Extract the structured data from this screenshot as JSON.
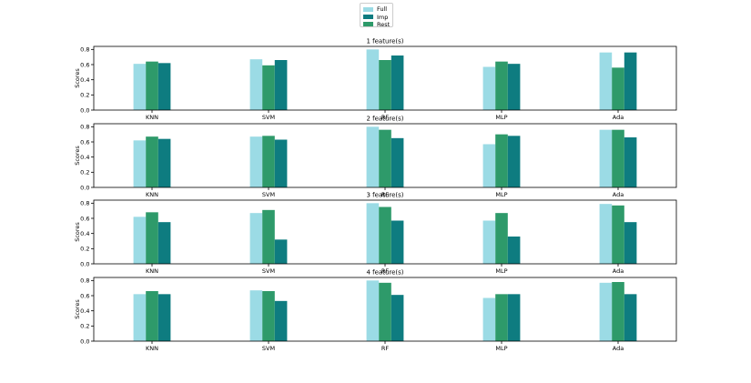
{
  "chart_data": {
    "type": "bar",
    "ylabel": "Scores",
    "categories": [
      "KNN",
      "SVM",
      "RF",
      "MLP",
      "Ada"
    ],
    "ylim": [
      0,
      0.84
    ],
    "yticks": [
      "0.0",
      "0.2",
      "0.4",
      "0.6",
      "0.8"
    ],
    "legend_placement": "top-center",
    "grid": false,
    "colors": {
      "Full": "#9bdbe5",
      "Imp": "#0e7c80",
      "Rest": "#2e9a6a"
    },
    "legend": [
      {
        "label": "Full",
        "color": "#9bdbe5"
      },
      {
        "label": "Imp",
        "color": "#0e7c80"
      },
      {
        "label": "Rest",
        "color": "#2e9a6a"
      }
    ],
    "panels": [
      {
        "title": "1 feature(s)",
        "series": [
          {
            "name": "Full",
            "values": [
              0.61,
              0.67,
              0.8,
              0.57,
              0.76
            ]
          },
          {
            "name": "Rest",
            "values": [
              0.64,
              0.59,
              0.66,
              0.64,
              0.56
            ]
          },
          {
            "name": "Imp",
            "values": [
              0.62,
              0.66,
              0.72,
              0.61,
              0.76
            ]
          }
        ]
      },
      {
        "title": "2 feature(s)",
        "series": [
          {
            "name": "Full",
            "values": [
              0.62,
              0.67,
              0.8,
              0.57,
              0.76
            ]
          },
          {
            "name": "Rest",
            "values": [
              0.67,
              0.68,
              0.76,
              0.7,
              0.76
            ]
          },
          {
            "name": "Imp",
            "values": [
              0.64,
              0.63,
              0.65,
              0.68,
              0.66
            ]
          }
        ]
      },
      {
        "title": "3 feature(s)",
        "series": [
          {
            "name": "Full",
            "values": [
              0.62,
              0.67,
              0.8,
              0.57,
              0.79
            ]
          },
          {
            "name": "Rest",
            "values": [
              0.68,
              0.71,
              0.75,
              0.67,
              0.77
            ]
          },
          {
            "name": "Imp",
            "values": [
              0.55,
              0.32,
              0.57,
              0.36,
              0.55
            ]
          }
        ]
      },
      {
        "title": "4 feature(s)",
        "series": [
          {
            "name": "Full",
            "values": [
              0.62,
              0.67,
              0.8,
              0.57,
              0.77
            ]
          },
          {
            "name": "Rest",
            "values": [
              0.66,
              0.66,
              0.77,
              0.62,
              0.78
            ]
          },
          {
            "name": "Imp",
            "values": [
              0.62,
              0.53,
              0.61,
              0.62,
              0.62
            ]
          }
        ]
      }
    ]
  }
}
